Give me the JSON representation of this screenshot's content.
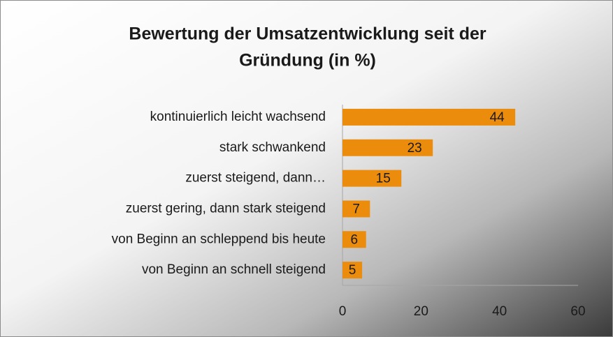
{
  "chart_data": {
    "type": "bar",
    "orientation": "horizontal",
    "title": [
      "Bewertung der Umsatzentwicklung seit der",
      "Gründung (in %)"
    ],
    "categories": [
      "kontinuierlich leicht wachsend",
      "stark schwankend",
      "zuerst steigend, dann…",
      "zuerst gering, dann stark steigend",
      "von Beginn an schleppend bis heute",
      "von Beginn an schnell steigend"
    ],
    "values": [
      44,
      23,
      15,
      7,
      6,
      5
    ],
    "color": "#ec8c0c",
    "xlim": [
      0,
      60
    ],
    "xticks": [
      0,
      20,
      40,
      60
    ],
    "grid": false
  }
}
